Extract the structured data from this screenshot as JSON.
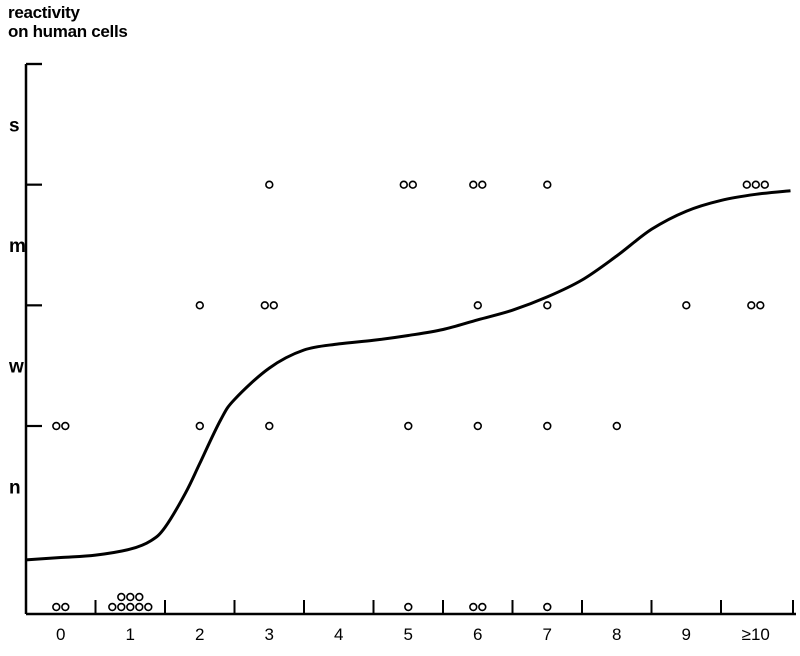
{
  "chart_data": {
    "type": "scatter",
    "ylabel": "reactivity\non human cells",
    "xlabel": "",
    "categories": [
      "0",
      "1",
      "2",
      "3",
      "4",
      "5",
      "6",
      "7",
      "8",
      "9",
      "≥10"
    ],
    "y_levels": [
      {
        "value": 0,
        "label": ""
      },
      {
        "value": 1,
        "label": "n"
      },
      {
        "value": 1.5,
        "label": ""
      },
      {
        "value": 2,
        "label": "w"
      },
      {
        "value": 2.5,
        "label": ""
      },
      {
        "value": 3,
        "label": "m"
      },
      {
        "value": 3.5,
        "label": ""
      },
      {
        "value": 4,
        "label": "s"
      },
      {
        "value": 4.5,
        "label": ""
      }
    ],
    "ylim": [
      0,
      4.5
    ],
    "points": [
      {
        "x": 0,
        "y": 0,
        "count": 2
      },
      {
        "x": 0,
        "y": 1.5,
        "count": 2
      },
      {
        "x": 1,
        "y": 0,
        "count": 8
      },
      {
        "x": 2,
        "y": 1.5,
        "count": 1
      },
      {
        "x": 2,
        "y": 2.5,
        "count": 1
      },
      {
        "x": 3,
        "y": 1.5,
        "count": 1
      },
      {
        "x": 3,
        "y": 2.5,
        "count": 2
      },
      {
        "x": 3,
        "y": 3.5,
        "count": 1
      },
      {
        "x": 5,
        "y": 0,
        "count": 1
      },
      {
        "x": 5,
        "y": 1.5,
        "count": 1
      },
      {
        "x": 5,
        "y": 3.5,
        "count": 2
      },
      {
        "x": 6,
        "y": 0,
        "count": 2
      },
      {
        "x": 6,
        "y": 1.5,
        "count": 1
      },
      {
        "x": 6,
        "y": 2.5,
        "count": 1
      },
      {
        "x": 6,
        "y": 3.5,
        "count": 2
      },
      {
        "x": 7,
        "y": 0,
        "count": 1
      },
      {
        "x": 7,
        "y": 1.5,
        "count": 1
      },
      {
        "x": 7,
        "y": 2.5,
        "count": 1
      },
      {
        "x": 7,
        "y": 3.5,
        "count": 1
      },
      {
        "x": 8,
        "y": 1.5,
        "count": 1
      },
      {
        "x": 9,
        "y": 2.5,
        "count": 1
      },
      {
        "x": 10,
        "y": 2.5,
        "count": 2
      },
      {
        "x": 10,
        "y": 3.5,
        "count": 3
      }
    ],
    "trend_curve": {
      "x": [
        -0.5,
        0.0,
        0.5,
        1.0,
        1.3,
        1.5,
        1.8,
        2.0,
        2.3,
        2.5,
        3.0,
        3.5,
        4.0,
        4.5,
        5.0,
        5.5,
        6.0,
        6.5,
        7.0,
        7.5,
        8.0,
        8.5,
        9.0,
        9.5,
        10.0,
        10.5
      ],
      "y": [
        0.39,
        0.41,
        0.43,
        0.48,
        0.55,
        0.66,
        0.95,
        1.19,
        1.55,
        1.72,
        1.98,
        2.13,
        2.18,
        2.21,
        2.25,
        2.3,
        2.38,
        2.46,
        2.57,
        2.71,
        2.91,
        3.13,
        3.28,
        3.37,
        3.42,
        3.45
      ]
    },
    "grid": false,
    "legend": "none"
  }
}
